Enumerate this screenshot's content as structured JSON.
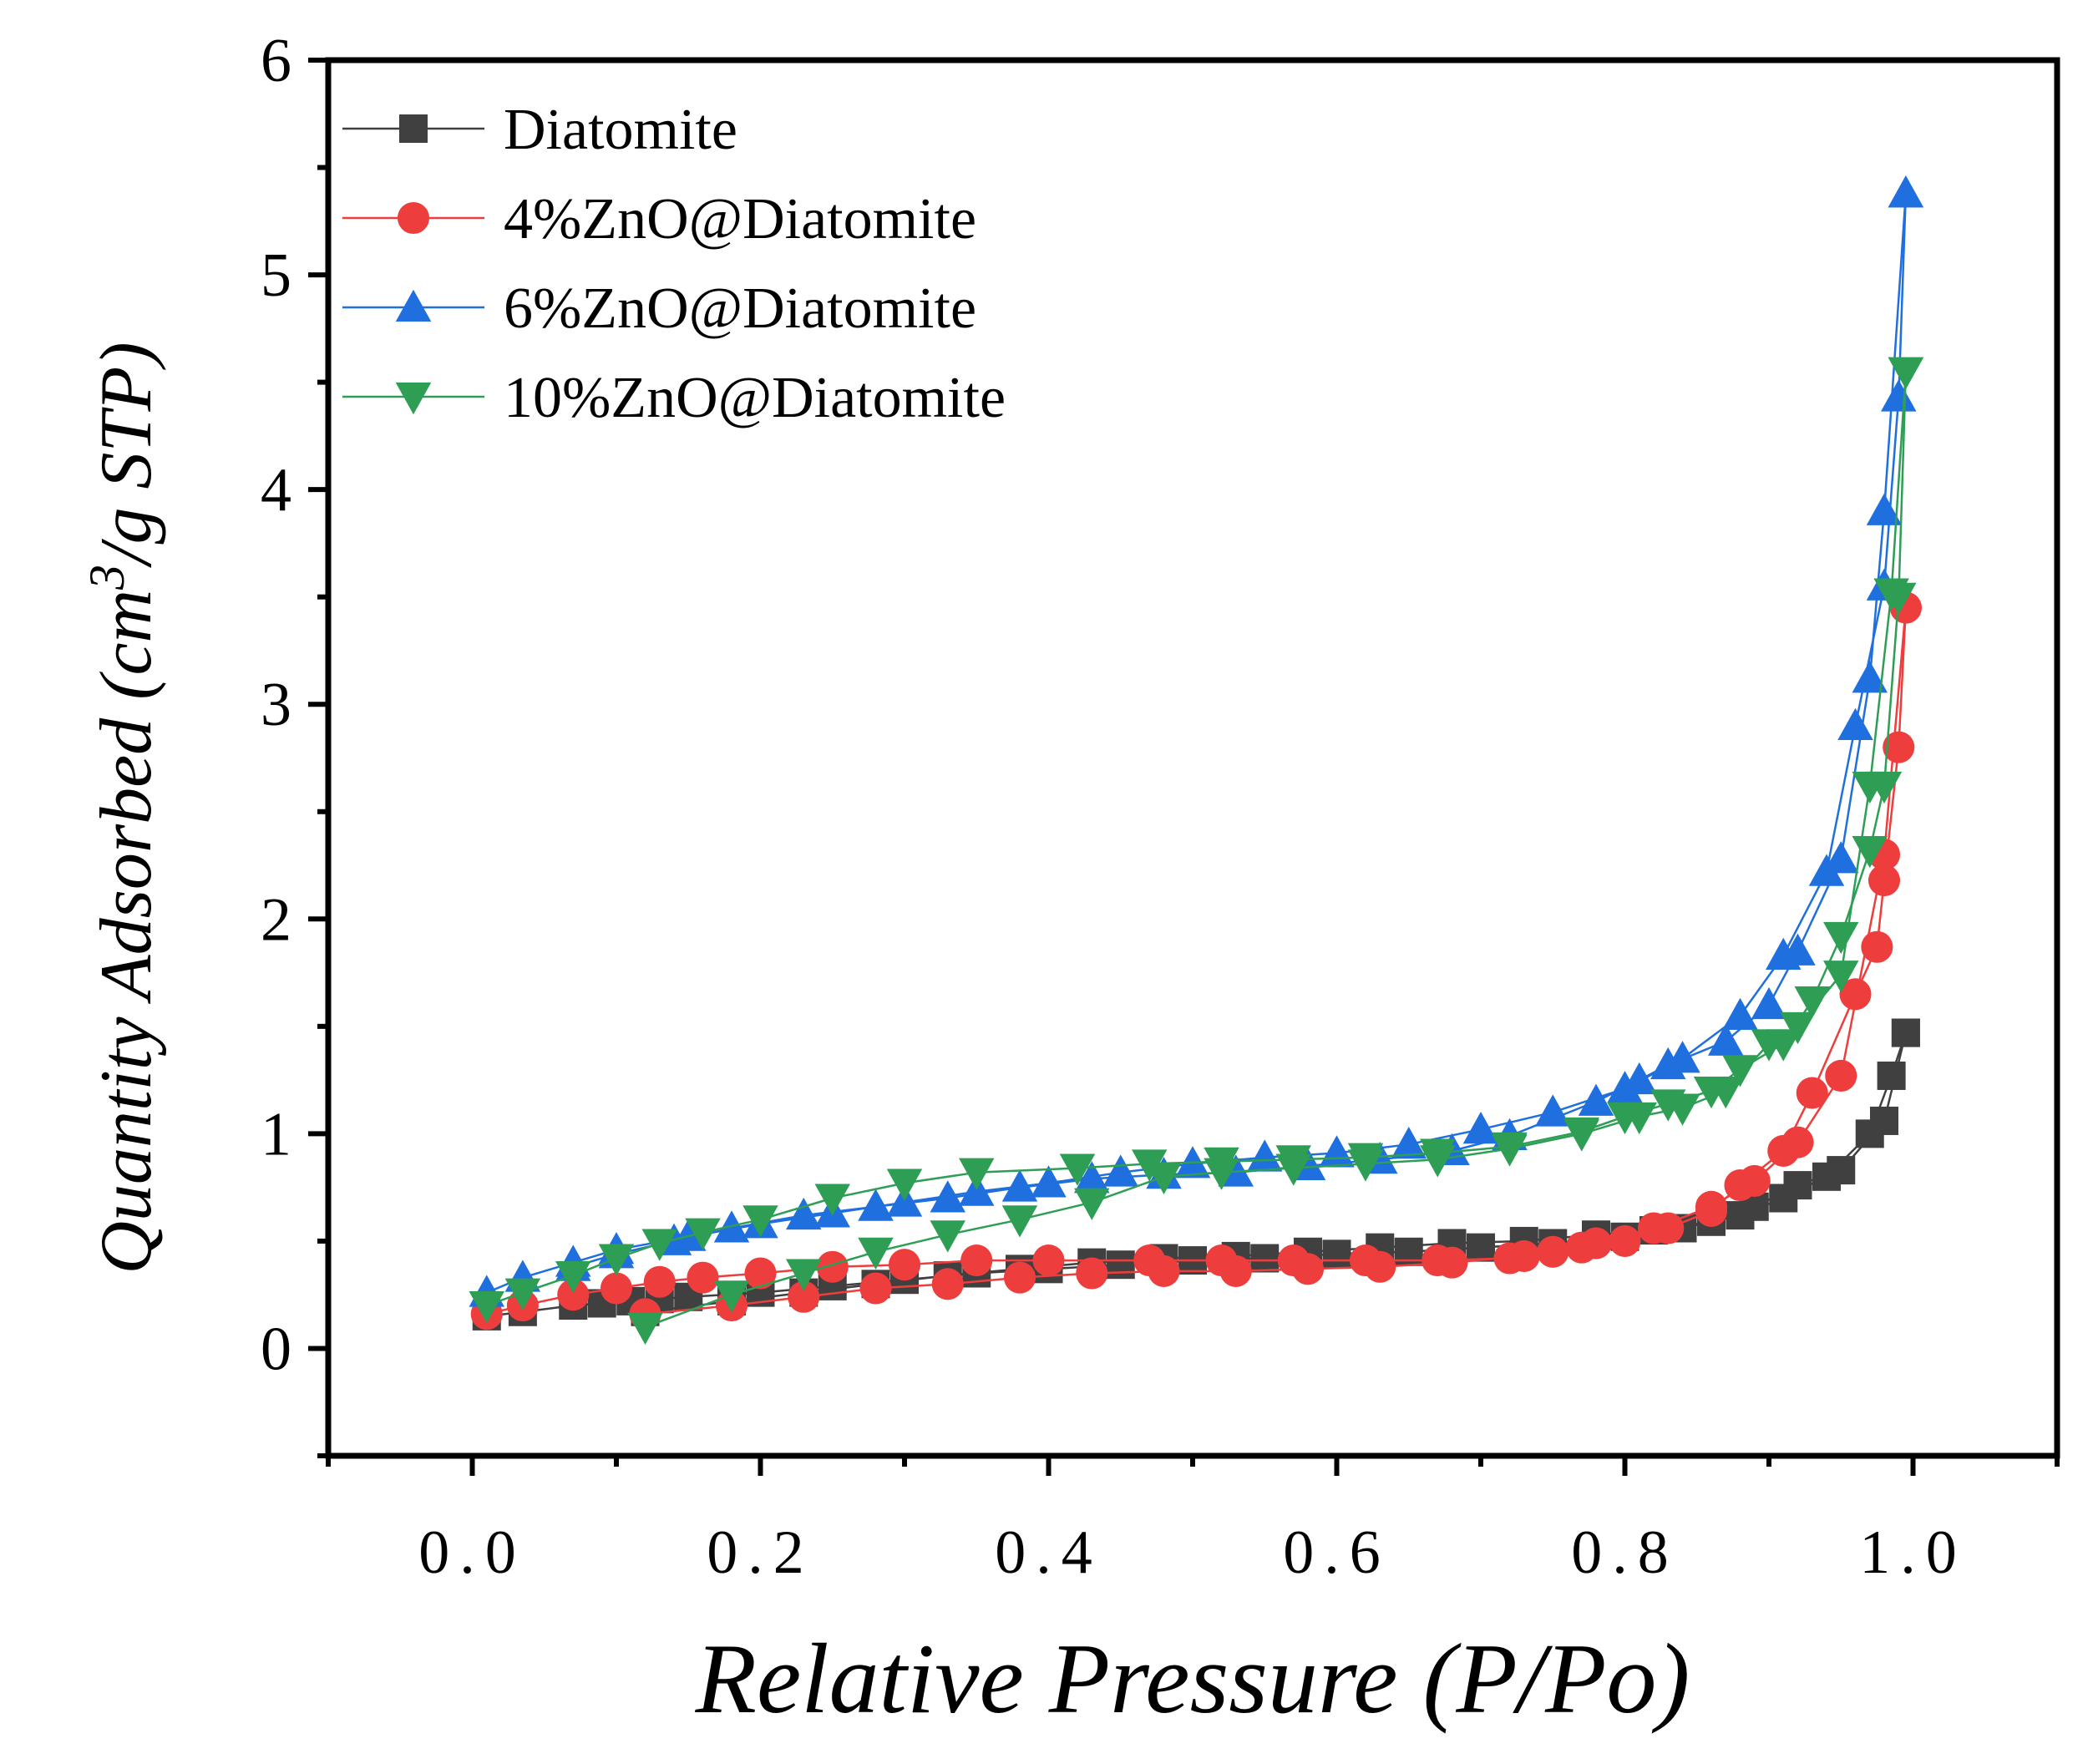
{
  "chart_data": {
    "type": "line",
    "xlabel": "Relative Pressure (P/Po)",
    "ylabel_main": "Quantity Adsorbed (cm",
    "ylabel_sup": "3",
    "ylabel_tail": "/g STP)",
    "xlim": [
      -0.1,
      1.1
    ],
    "ylim": [
      -0.5,
      6
    ],
    "x_ticks": [
      0.0,
      0.2,
      0.4,
      0.6,
      0.8,
      1.0
    ],
    "x_tick_labels": [
      "0.0",
      "0.2",
      "0.4",
      "0.6",
      "0.8",
      "1.0"
    ],
    "y_ticks": [
      0,
      1,
      2,
      3,
      4,
      5,
      6
    ],
    "y_tick_labels": [
      "0",
      "1",
      "2",
      "3",
      "4",
      "5",
      "6"
    ],
    "grid": false,
    "legend_position": "top-left",
    "series": [
      {
        "name": "Diatomite",
        "color": "#404040",
        "marker": "square",
        "adsorption": [
          [
            0.01,
            0.15
          ],
          [
            0.035,
            0.17
          ],
          [
            0.07,
            0.2
          ],
          [
            0.09,
            0.21
          ],
          [
            0.11,
            0.22
          ],
          [
            0.13,
            0.23
          ],
          [
            0.15,
            0.24
          ],
          [
            0.2,
            0.26
          ],
          [
            0.25,
            0.29
          ],
          [
            0.3,
            0.32
          ],
          [
            0.35,
            0.35
          ],
          [
            0.4,
            0.37
          ],
          [
            0.45,
            0.39
          ],
          [
            0.5,
            0.41
          ],
          [
            0.55,
            0.42
          ],
          [
            0.6,
            0.44
          ],
          [
            0.65,
            0.45
          ],
          [
            0.7,
            0.47
          ],
          [
            0.75,
            0.49
          ],
          [
            0.8,
            0.52
          ],
          [
            0.84,
            0.56
          ],
          [
            0.88,
            0.62
          ],
          [
            0.91,
            0.7
          ],
          [
            0.94,
            0.8
          ],
          [
            0.97,
            1.0
          ],
          [
            0.985,
            1.27
          ],
          [
            0.995,
            1.47
          ]
        ],
        "desorption": [
          [
            0.995,
            1.47
          ],
          [
            0.98,
            1.06
          ],
          [
            0.95,
            0.83
          ],
          [
            0.92,
            0.76
          ],
          [
            0.89,
            0.66
          ],
          [
            0.86,
            0.59
          ],
          [
            0.82,
            0.55
          ],
          [
            0.78,
            0.53
          ],
          [
            0.73,
            0.5
          ],
          [
            0.68,
            0.49
          ],
          [
            0.63,
            0.47
          ],
          [
            0.58,
            0.45
          ],
          [
            0.53,
            0.43
          ],
          [
            0.48,
            0.42
          ],
          [
            0.43,
            0.4
          ],
          [
            0.38,
            0.37
          ],
          [
            0.33,
            0.34
          ],
          [
            0.28,
            0.3
          ],
          [
            0.23,
            0.26
          ],
          [
            0.18,
            0.22
          ],
          [
            0.12,
            0.17
          ]
        ]
      },
      {
        "name": "4%ZnO@Diatomite",
        "color": "#ee3d3d",
        "marker": "circle",
        "adsorption": [
          [
            0.01,
            0.16
          ],
          [
            0.035,
            0.2
          ],
          [
            0.07,
            0.25
          ],
          [
            0.1,
            0.28
          ],
          [
            0.13,
            0.31
          ],
          [
            0.16,
            0.33
          ],
          [
            0.2,
            0.35
          ],
          [
            0.25,
            0.38
          ],
          [
            0.3,
            0.39
          ],
          [
            0.35,
            0.41
          ],
          [
            0.4,
            0.41
          ],
          [
            0.47,
            0.41
          ],
          [
            0.52,
            0.41
          ],
          [
            0.57,
            0.41
          ],
          [
            0.62,
            0.41
          ],
          [
            0.67,
            0.41
          ],
          [
            0.72,
            0.42
          ],
          [
            0.75,
            0.45
          ],
          [
            0.77,
            0.47
          ],
          [
            0.8,
            0.5
          ],
          [
            0.83,
            0.56
          ],
          [
            0.86,
            0.64
          ],
          [
            0.88,
            0.76
          ],
          [
            0.91,
            0.92
          ],
          [
            0.93,
            1.19
          ],
          [
            0.96,
            1.65
          ],
          [
            0.975,
            1.87
          ],
          [
            0.98,
            2.18
          ],
          [
            0.99,
            2.8
          ],
          [
            0.995,
            3.45
          ]
        ],
        "desorption": [
          [
            0.995,
            3.45
          ],
          [
            0.98,
            2.3
          ],
          [
            0.95,
            1.27
          ],
          [
            0.92,
            0.96
          ],
          [
            0.89,
            0.78
          ],
          [
            0.86,
            0.66
          ],
          [
            0.82,
            0.56
          ],
          [
            0.78,
            0.49
          ],
          [
            0.73,
            0.43
          ],
          [
            0.68,
            0.4
          ],
          [
            0.63,
            0.38
          ],
          [
            0.58,
            0.37
          ],
          [
            0.53,
            0.36
          ],
          [
            0.48,
            0.36
          ],
          [
            0.43,
            0.35
          ],
          [
            0.38,
            0.33
          ],
          [
            0.33,
            0.3
          ],
          [
            0.28,
            0.28
          ],
          [
            0.23,
            0.24
          ],
          [
            0.18,
            0.2
          ],
          [
            0.12,
            0.16
          ]
        ]
      },
      {
        "name": "6%ZnO@Diatomite",
        "color": "#1f6fde",
        "marker": "triangle-up",
        "adsorption": [
          [
            0.01,
            0.26
          ],
          [
            0.035,
            0.33
          ],
          [
            0.07,
            0.4
          ],
          [
            0.1,
            0.46
          ],
          [
            0.15,
            0.52
          ],
          [
            0.2,
            0.58
          ],
          [
            0.25,
            0.63
          ],
          [
            0.3,
            0.68
          ],
          [
            0.35,
            0.73
          ],
          [
            0.4,
            0.77
          ],
          [
            0.45,
            0.82
          ],
          [
            0.5,
            0.86
          ],
          [
            0.55,
            0.89
          ],
          [
            0.6,
            0.91
          ],
          [
            0.65,
            0.95
          ],
          [
            0.7,
            1.02
          ],
          [
            0.75,
            1.1
          ],
          [
            0.8,
            1.21
          ],
          [
            0.84,
            1.35
          ],
          [
            0.88,
            1.55
          ],
          [
            0.91,
            1.83
          ],
          [
            0.94,
            2.22
          ],
          [
            0.96,
            2.9
          ],
          [
            0.98,
            3.55
          ],
          [
            0.99,
            4.43
          ],
          [
            0.995,
            5.38
          ]
        ],
        "desorption": [
          [
            0.995,
            5.38
          ],
          [
            0.98,
            3.9
          ],
          [
            0.97,
            3.12
          ],
          [
            0.95,
            2.28
          ],
          [
            0.92,
            1.85
          ],
          [
            0.9,
            1.6
          ],
          [
            0.87,
            1.43
          ],
          [
            0.83,
            1.32
          ],
          [
            0.81,
            1.25
          ],
          [
            0.78,
            1.15
          ],
          [
            0.72,
            0.99
          ],
          [
            0.68,
            0.92
          ],
          [
            0.63,
            0.88
          ],
          [
            0.58,
            0.85
          ],
          [
            0.53,
            0.82
          ],
          [
            0.48,
            0.81
          ],
          [
            0.43,
            0.79
          ],
          [
            0.38,
            0.75
          ],
          [
            0.33,
            0.7
          ],
          [
            0.28,
            0.66
          ],
          [
            0.23,
            0.62
          ],
          [
            0.18,
            0.56
          ],
          [
            0.14,
            0.5
          ],
          [
            0.1,
            0.44
          ],
          [
            0.07,
            0.38
          ]
        ]
      },
      {
        "name": "10%ZnO@Diatomite",
        "color": "#2e9e55",
        "marker": "triangle-down",
        "adsorption": [
          [
            0.01,
            0.2
          ],
          [
            0.035,
            0.26
          ],
          [
            0.07,
            0.34
          ],
          [
            0.1,
            0.42
          ],
          [
            0.13,
            0.49
          ],
          [
            0.16,
            0.54
          ],
          [
            0.2,
            0.6
          ],
          [
            0.25,
            0.7
          ],
          [
            0.3,
            0.77
          ],
          [
            0.35,
            0.82
          ],
          [
            0.42,
            0.84
          ],
          [
            0.47,
            0.86
          ],
          [
            0.52,
            0.87
          ],
          [
            0.57,
            0.88
          ],
          [
            0.62,
            0.89
          ],
          [
            0.67,
            0.91
          ],
          [
            0.72,
            0.94
          ],
          [
            0.77,
            1.01
          ],
          [
            0.8,
            1.08
          ],
          [
            0.83,
            1.14
          ],
          [
            0.86,
            1.2
          ],
          [
            0.88,
            1.3
          ],
          [
            0.91,
            1.42
          ],
          [
            0.93,
            1.62
          ],
          [
            0.95,
            1.92
          ],
          [
            0.97,
            2.32
          ],
          [
            0.98,
            2.62
          ],
          [
            0.99,
            3.5
          ],
          [
            0.995,
            4.55
          ]
        ],
        "desorption": [
          [
            0.995,
            4.55
          ],
          [
            0.985,
            3.52
          ],
          [
            0.97,
            2.62
          ],
          [
            0.95,
            1.74
          ],
          [
            0.92,
            1.5
          ],
          [
            0.9,
            1.42
          ],
          [
            0.87,
            1.2
          ],
          [
            0.84,
            1.12
          ],
          [
            0.81,
            1.08
          ],
          [
            0.77,
            1.0
          ],
          [
            0.72,
            0.93
          ],
          [
            0.67,
            0.88
          ],
          [
            0.62,
            0.86
          ],
          [
            0.57,
            0.84
          ],
          [
            0.52,
            0.82
          ],
          [
            0.48,
            0.8
          ],
          [
            0.43,
            0.68
          ],
          [
            0.38,
            0.6
          ],
          [
            0.33,
            0.53
          ],
          [
            0.28,
            0.45
          ],
          [
            0.23,
            0.35
          ],
          [
            0.18,
            0.25
          ],
          [
            0.12,
            0.1
          ]
        ]
      }
    ]
  }
}
